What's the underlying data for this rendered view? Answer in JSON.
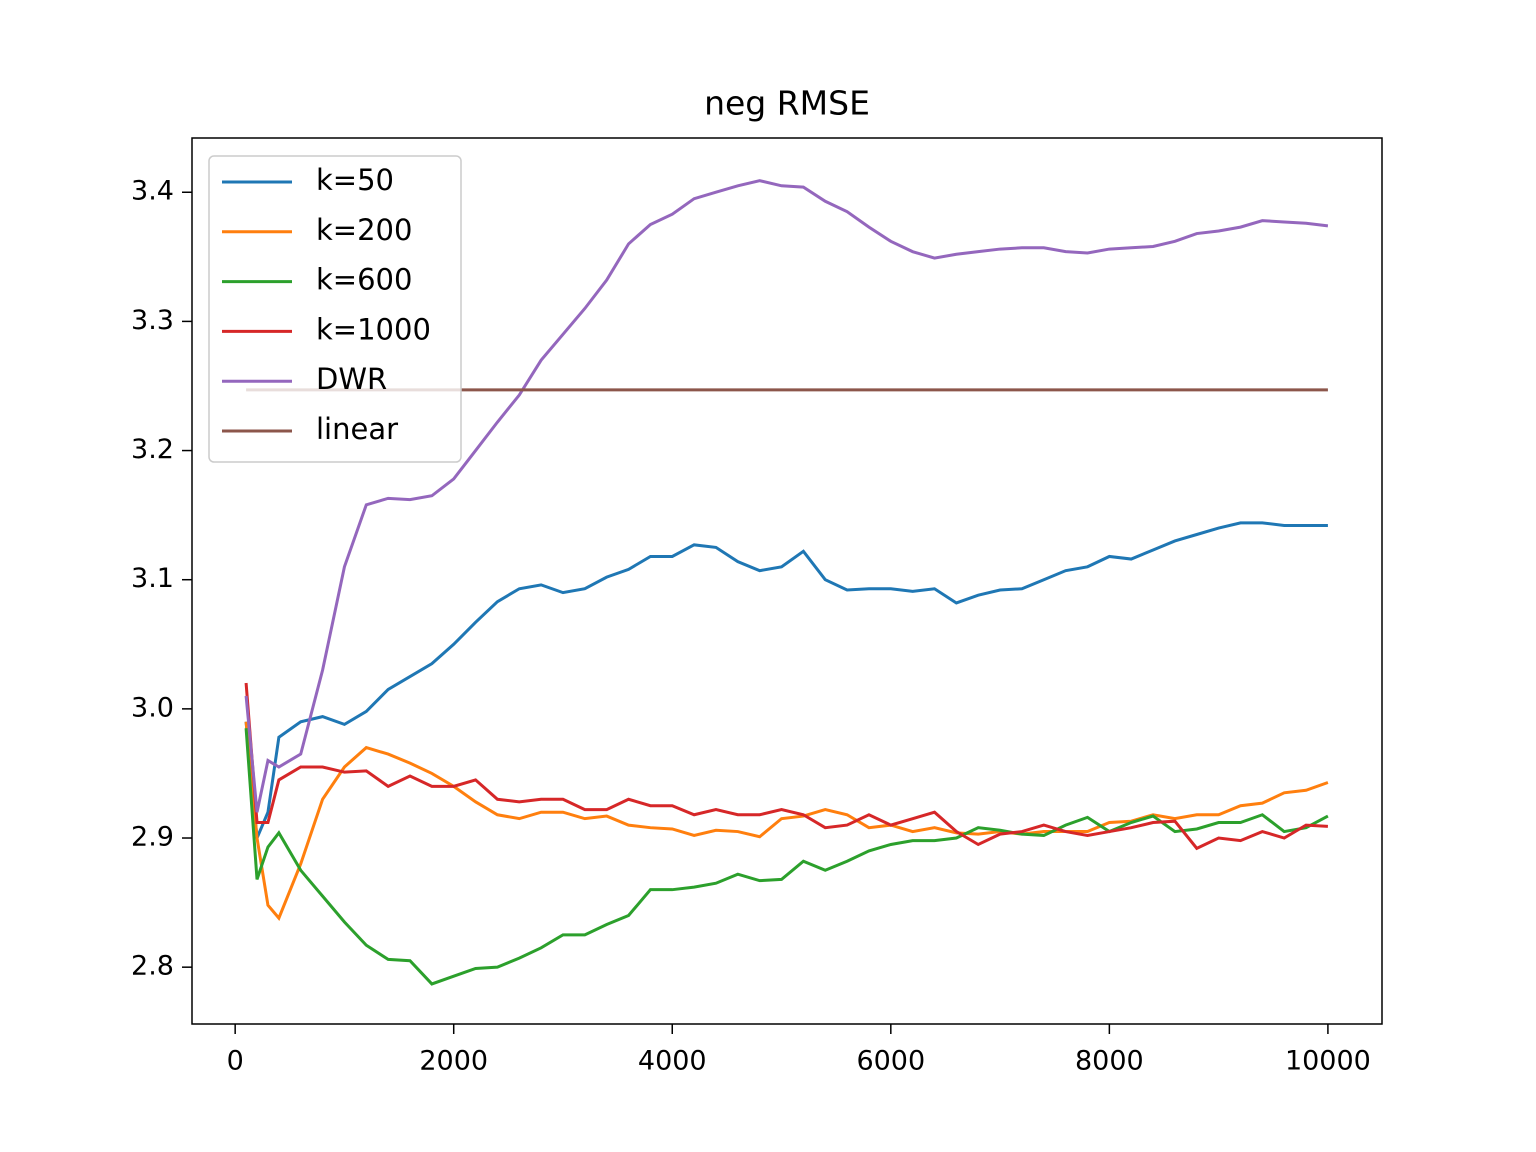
{
  "chart_data": {
    "type": "line",
    "title": "neg RMSE",
    "x": [
      100,
      200,
      300,
      400,
      600,
      800,
      1000,
      1200,
      1400,
      1600,
      1800,
      2000,
      2200,
      2400,
      2600,
      2800,
      3000,
      3200,
      3400,
      3600,
      3800,
      4000,
      4200,
      4400,
      4600,
      4800,
      5000,
      5200,
      5400,
      5600,
      5800,
      6000,
      6200,
      6400,
      6600,
      6800,
      7000,
      7200,
      7400,
      7600,
      7800,
      8000,
      8200,
      8400,
      8600,
      8800,
      9000,
      9200,
      9400,
      9600,
      9800,
      10000
    ],
    "series": [
      {
        "name": "k=50",
        "color": "#1f77b4",
        "values": [
          2.99,
          2.9,
          2.92,
          2.978,
          2.99,
          2.994,
          2.988,
          2.998,
          3.015,
          3.025,
          3.035,
          3.05,
          3.067,
          3.083,
          3.093,
          3.096,
          3.09,
          3.093,
          3.102,
          3.108,
          3.118,
          3.118,
          3.127,
          3.125,
          3.114,
          3.107,
          3.11,
          3.122,
          3.1,
          3.092,
          3.093,
          3.093,
          3.091,
          3.093,
          3.082,
          3.088,
          3.092,
          3.093,
          3.1,
          3.107,
          3.11,
          3.118,
          3.116,
          3.123,
          3.13,
          3.135,
          3.14,
          3.144,
          3.144,
          3.142,
          3.142,
          3.142
        ]
      },
      {
        "name": "k=200",
        "color": "#ff7f0e",
        "values": [
          2.99,
          2.9,
          2.848,
          2.838,
          2.88,
          2.93,
          2.955,
          2.97,
          2.965,
          2.958,
          2.95,
          2.94,
          2.928,
          2.918,
          2.915,
          2.92,
          2.92,
          2.915,
          2.917,
          2.91,
          2.908,
          2.907,
          2.902,
          2.906,
          2.905,
          2.901,
          2.915,
          2.917,
          2.922,
          2.918,
          2.908,
          2.91,
          2.905,
          2.908,
          2.904,
          2.903,
          2.905,
          2.903,
          2.905,
          2.905,
          2.905,
          2.912,
          2.913,
          2.918,
          2.915,
          2.918,
          2.918,
          2.925,
          2.927,
          2.935,
          2.937,
          2.943
        ]
      },
      {
        "name": "k=600",
        "color": "#2ca02c",
        "values": [
          2.985,
          2.868,
          2.893,
          2.904,
          2.875,
          2.855,
          2.835,
          2.817,
          2.806,
          2.805,
          2.787,
          2.793,
          2.799,
          2.8,
          2.807,
          2.815,
          2.825,
          2.825,
          2.833,
          2.84,
          2.86,
          2.86,
          2.862,
          2.865,
          2.872,
          2.867,
          2.868,
          2.882,
          2.875,
          2.882,
          2.89,
          2.895,
          2.898,
          2.898,
          2.9,
          2.908,
          2.906,
          2.903,
          2.902,
          2.91,
          2.916,
          2.905,
          2.912,
          2.917,
          2.905,
          2.907,
          2.912,
          2.912,
          2.918,
          2.905,
          2.908,
          2.917
        ]
      },
      {
        "name": "k=1000",
        "color": "#d62728",
        "values": [
          3.02,
          2.912,
          2.912,
          2.945,
          2.955,
          2.955,
          2.951,
          2.952,
          2.94,
          2.948,
          2.94,
          2.94,
          2.945,
          2.93,
          2.928,
          2.93,
          2.93,
          2.922,
          2.922,
          2.93,
          2.925,
          2.925,
          2.918,
          2.922,
          2.918,
          2.918,
          2.922,
          2.918,
          2.908,
          2.91,
          2.918,
          2.91,
          2.915,
          2.92,
          2.905,
          2.895,
          2.903,
          2.905,
          2.91,
          2.905,
          2.902,
          2.905,
          2.908,
          2.912,
          2.913,
          2.892,
          2.9,
          2.898,
          2.905,
          2.9,
          2.91,
          2.909
        ]
      },
      {
        "name": "DWR",
        "color": "#9467bd",
        "values": [
          3.01,
          2.92,
          2.96,
          2.955,
          2.965,
          3.03,
          3.11,
          3.158,
          3.163,
          3.162,
          3.165,
          3.178,
          3.2,
          3.222,
          3.243,
          3.27,
          3.29,
          3.31,
          3.332,
          3.36,
          3.375,
          3.383,
          3.395,
          3.4,
          3.405,
          3.409,
          3.405,
          3.404,
          3.393,
          3.385,
          3.373,
          3.362,
          3.354,
          3.349,
          3.352,
          3.354,
          3.356,
          3.357,
          3.357,
          3.354,
          3.353,
          3.356,
          3.357,
          3.358,
          3.362,
          3.368,
          3.37,
          3.373,
          3.378,
          3.377,
          3.376,
          3.374
        ]
      },
      {
        "name": "linear",
        "color": "#8c564b",
        "values": [
          3.247,
          3.247,
          3.247,
          3.247,
          3.247,
          3.247,
          3.247,
          3.247,
          3.247,
          3.247,
          3.247,
          3.247,
          3.247,
          3.247,
          3.247,
          3.247,
          3.247,
          3.247,
          3.247,
          3.247,
          3.247,
          3.247,
          3.247,
          3.247,
          3.247,
          3.247,
          3.247,
          3.247,
          3.247,
          3.247,
          3.247,
          3.247,
          3.247,
          3.247,
          3.247,
          3.247,
          3.247,
          3.247,
          3.247,
          3.247,
          3.247,
          3.247,
          3.247,
          3.247,
          3.247,
          3.247,
          3.247,
          3.247,
          3.247,
          3.247,
          3.247,
          3.247
        ]
      }
    ],
    "xlim": [
      -395,
      10495
    ],
    "xticks": [
      0,
      2000,
      4000,
      6000,
      8000,
      10000
    ],
    "ylim": [
      2.756,
      3.442
    ],
    "yticks": [
      2.8,
      2.9,
      {
        "value": 3,
        "label": "3.0"
      },
      3.1,
      3.2,
      3.3,
      3.4
    ],
    "legend": "upper left",
    "grid": false
  }
}
